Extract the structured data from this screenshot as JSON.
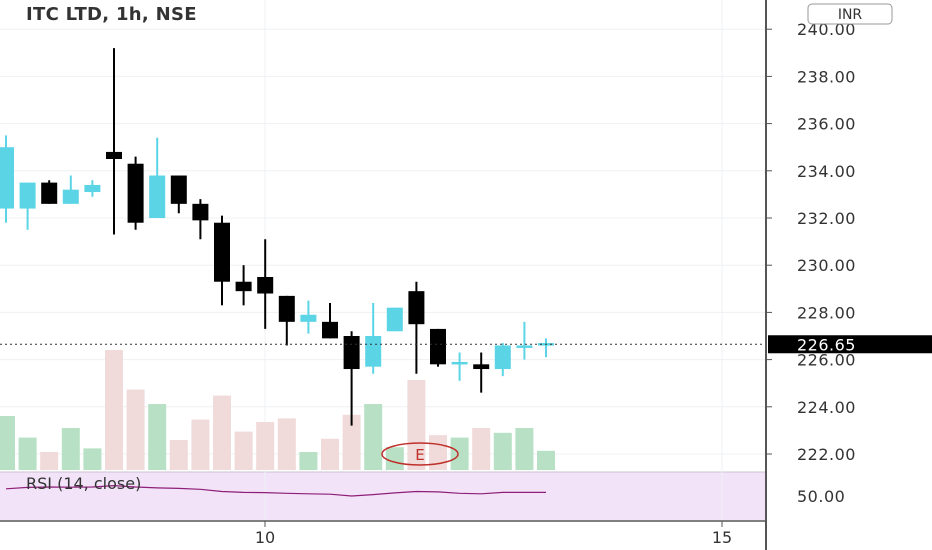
{
  "header": {
    "symbol_title": "ITC LTD, 1h, NSE",
    "currency_button": "INR"
  },
  "colors": {
    "up_candle": "#5bd4e6",
    "down_candle": "#000000",
    "up_volume": "#b7e0c4",
    "down_volume": "#f0dada",
    "rsi_line": "#8e1e78",
    "rsi_background": "#f2e3f8",
    "last_price_bg": "#000000",
    "earnings_marker": "#c0302b"
  },
  "price_axis": {
    "ticks": [
      "240.00",
      "238.00",
      "236.00",
      "234.00",
      "232.00",
      "230.00",
      "228.00",
      "226.00",
      "224.00",
      "222.00"
    ],
    "last_price_label": "226.65"
  },
  "rsi_pane": {
    "label": "RSI (14, close)",
    "tick": "50.00"
  },
  "time_axis": {
    "ticks": [
      "10",
      "15"
    ]
  },
  "earnings_marker_label": "E",
  "chart_data": {
    "type": "candlestick",
    "title": "ITC LTD, 1h, NSE",
    "currency": "INR",
    "ylim": [
      221.5,
      240.5
    ],
    "y_ticks": [
      222,
      224,
      226,
      228,
      230,
      232,
      234,
      236,
      238,
      240
    ],
    "last_price": 226.65,
    "x_tick_labels": [
      "10",
      "15"
    ],
    "candles": [
      {
        "o": 232.4,
        "h": 235.5,
        "l": 231.8,
        "c": 235.0
      },
      {
        "o": 232.4,
        "h": 233.5,
        "l": 231.5,
        "c": 233.5
      },
      {
        "o": 233.5,
        "h": 233.6,
        "l": 232.6,
        "c": 232.6
      },
      {
        "o": 232.6,
        "h": 233.8,
        "l": 232.6,
        "c": 233.2
      },
      {
        "o": 233.1,
        "h": 233.6,
        "l": 232.9,
        "c": 233.4
      },
      {
        "o": 234.8,
        "h": 239.2,
        "l": 231.3,
        "c": 234.5
      },
      {
        "o": 234.3,
        "h": 234.6,
        "l": 231.5,
        "c": 231.8
      },
      {
        "o": 232.0,
        "h": 235.4,
        "l": 232.0,
        "c": 233.8
      },
      {
        "o": 233.8,
        "h": 233.8,
        "l": 232.2,
        "c": 232.6
      },
      {
        "o": 232.6,
        "h": 232.8,
        "l": 231.1,
        "c": 231.9
      },
      {
        "o": 231.8,
        "h": 232.1,
        "l": 228.3,
        "c": 229.3
      },
      {
        "o": 229.3,
        "h": 230.0,
        "l": 228.3,
        "c": 228.9
      },
      {
        "o": 229.5,
        "h": 231.1,
        "l": 227.3,
        "c": 228.8
      },
      {
        "o": 228.7,
        "h": 228.7,
        "l": 226.6,
        "c": 227.6
      },
      {
        "o": 227.6,
        "h": 228.5,
        "l": 227.1,
        "c": 227.9
      },
      {
        "o": 227.6,
        "h": 228.4,
        "l": 226.9,
        "c": 226.9
      },
      {
        "o": 227.0,
        "h": 227.2,
        "l": 223.2,
        "c": 225.6
      },
      {
        "o": 225.7,
        "h": 228.4,
        "l": 225.4,
        "c": 227.0
      },
      {
        "o": 227.2,
        "h": 228.2,
        "l": 227.2,
        "c": 228.2
      },
      {
        "o": 228.9,
        "h": 229.3,
        "l": 225.4,
        "c": 227.5
      },
      {
        "o": 227.3,
        "h": 227.3,
        "l": 225.7,
        "c": 225.8
      },
      {
        "o": 225.9,
        "h": 226.3,
        "l": 225.1,
        "c": 225.9
      },
      {
        "o": 225.8,
        "h": 226.3,
        "l": 224.6,
        "c": 225.6
      },
      {
        "o": 225.6,
        "h": 226.7,
        "l": 225.3,
        "c": 226.6
      },
      {
        "o": 226.6,
        "h": 227.6,
        "l": 226.0,
        "c": 226.6
      },
      {
        "o": 226.6,
        "h": 226.9,
        "l": 226.1,
        "c": 226.7
      }
    ],
    "volume": [
      0.45,
      0.27,
      0.15,
      0.35,
      0.18,
      1.0,
      0.67,
      0.55,
      0.25,
      0.42,
      0.62,
      0.32,
      0.4,
      0.43,
      0.15,
      0.26,
      0.46,
      0.55,
      0.19,
      0.75,
      0.29,
      0.27,
      0.35,
      0.31,
      0.35,
      0.16
    ],
    "rsi": {
      "label": "RSI (14, close)",
      "ylim": [
        30,
        70
      ],
      "tick": 50,
      "values": [
        58.0,
        59.5,
        60.0,
        59.8,
        60.0,
        61.5,
        60.0,
        59.0,
        58.5,
        57.5,
        55.0,
        54.0,
        53.8,
        53.0,
        52.5,
        52.0,
        50.0,
        51.5,
        53.5,
        55.0,
        54.5,
        53.0,
        52.5,
        54.0,
        54.0,
        54.0
      ]
    }
  }
}
